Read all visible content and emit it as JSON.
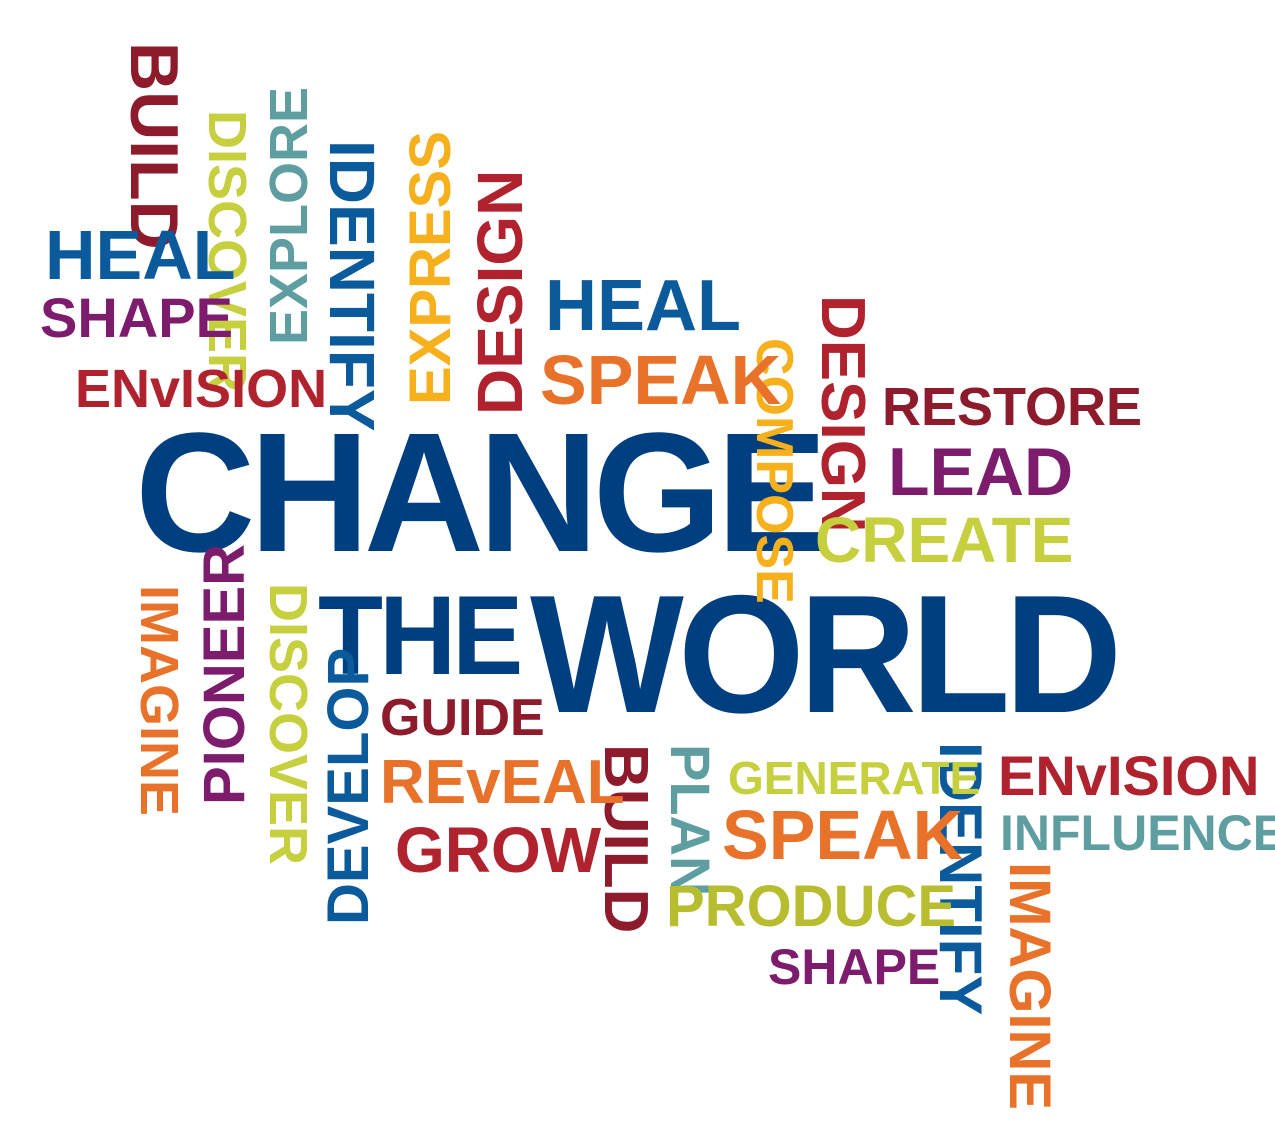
{
  "colors": {
    "navy": "#003f7f",
    "blue": "#0a5a9c",
    "red": "#b0222e",
    "maroon": "#8e1b2b",
    "orange": "#e8722a",
    "gold": "#f5b01c",
    "lime": "#c6cf3e",
    "teal": "#5f9ea0",
    "purple": "#7d1c6c",
    "olive": "#b8bd2f"
  },
  "words": {
    "change": "CHANGE",
    "the": "THE",
    "world": "WORLD",
    "build_top": "BUILD",
    "discover_top": "DISCOVER",
    "explore": "EXPLORE",
    "identify_top": "IDENTIFY",
    "express": "EXPRESS",
    "design_top": "DESIGN",
    "heal_left": "HEAL",
    "shape_left": "SHAPE",
    "envision_left": "ENvISION",
    "heal_mid": "HEAL",
    "speak_top": "SPEAK",
    "compose": "COMPOSE",
    "design_right": "DESIGN",
    "restore": "RESTORE",
    "lead": "LEAD",
    "create": "CREATE",
    "imagine_left": "IMAGINE",
    "pioneer": "PIONEER",
    "discover_bottom": "DISCOVER",
    "develop": "DEVELOP",
    "guide": "GUIDE",
    "reveal": "REvEAL",
    "grow": "GROW",
    "build_bottom": "BUILD",
    "plan": "PLAN",
    "generate": "GENERATE",
    "speak_bottom": "SPEAK",
    "identify_right": "IDENTIFY",
    "envision_right": "ENvISION",
    "influence": "INFLUENCE",
    "produce": "PRODUCE",
    "shape_bottom": "SHAPE",
    "imagine_right": "IMAGINE"
  }
}
